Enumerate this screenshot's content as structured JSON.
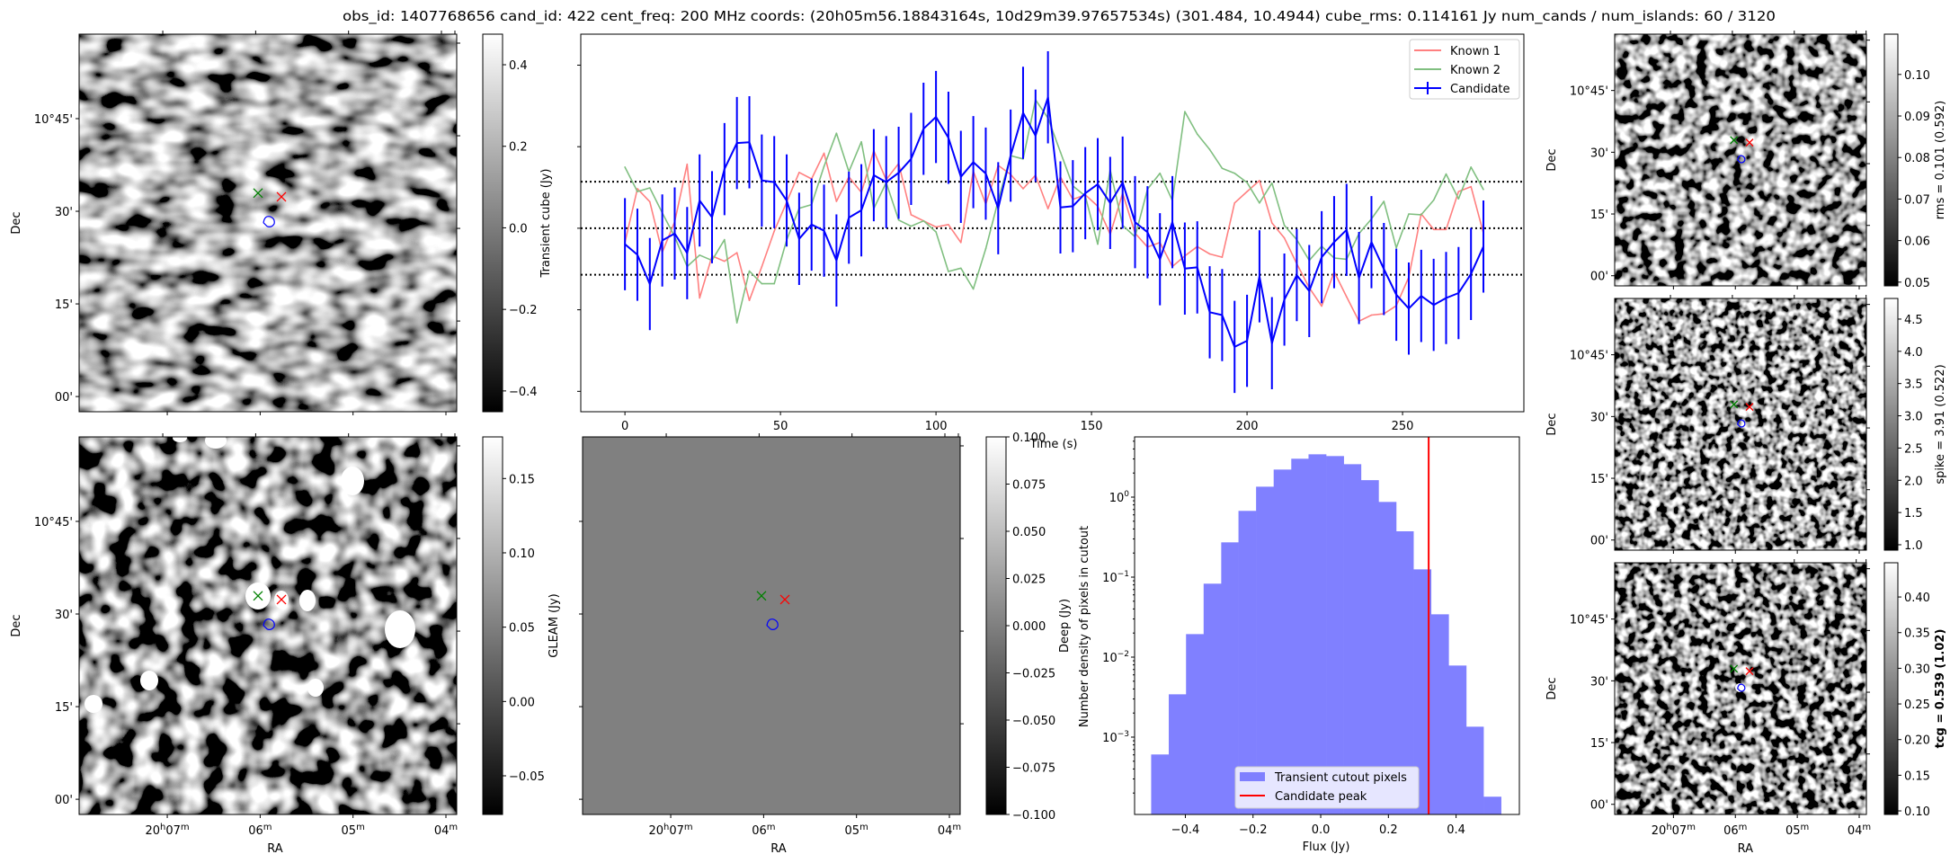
{
  "title": "obs_id: 1407768656 cand_id: 422 cent_freq: 200 MHz coords: (20h05m56.18843164s, 10d29m39.97657534s) (301.484, 10.4944) cube_rms: 0.114161 Jy num_cands / num_islands: 60 / 3120",
  "sky": {
    "ra_range_min": [
      7.949,
      3.884
    ],
    "dec_range_deg": [
      9.959,
      10.978
    ],
    "ra_label": "RA",
    "dec_label": "Dec",
    "ra_ticks": [
      {
        "value": 7,
        "label": [
          "20",
          "h",
          "07",
          "m"
        ]
      },
      {
        "value": 6,
        "label": [
          "06",
          "m"
        ]
      },
      {
        "value": 5,
        "label": [
          "05",
          "m"
        ]
      },
      {
        "value": 4,
        "label": [
          "04",
          "m"
        ]
      }
    ],
    "dec_ticks": [
      {
        "value": 10.75,
        "label": "10°45'"
      },
      {
        "value": 10.5,
        "label": "30'"
      },
      {
        "value": 10.25,
        "label": "15'"
      },
      {
        "value": 10.0,
        "label": "00'"
      }
    ],
    "markers": [
      {
        "name": "known-2",
        "symbol": "x",
        "color": "#008000",
        "ra_min": 6.023,
        "dec": 10.549
      },
      {
        "name": "known-1",
        "symbol": "x",
        "color": "#ff0000",
        "ra_min": 5.771,
        "dec": 10.539
      },
      {
        "name": "candidate",
        "symbol": "contour",
        "color": "#0000ff",
        "ra_min": 5.906,
        "dec": 10.469
      }
    ]
  },
  "images": {
    "transient": {
      "colorbar": {
        "label": "Transient cube (Jy)",
        "range": [
          -0.451,
          0.475
        ],
        "ticks": [
          {
            "value": 0.4,
            "label": "0.4"
          },
          {
            "value": 0.2,
            "label": "0.2"
          },
          {
            "value": 0.0,
            "label": "0.0"
          },
          {
            "value": -0.2,
            "label": "−0.2"
          },
          {
            "value": -0.4,
            "label": "−0.4"
          }
        ]
      }
    },
    "gleam": {
      "colorbar": {
        "label": "GLEAM (Jy)",
        "range": [
          -0.076,
          0.178
        ],
        "ticks": [
          {
            "value": 0.15,
            "label": "0.15"
          },
          {
            "value": 0.1,
            "label": "0.10"
          },
          {
            "value": 0.05,
            "label": "0.05"
          },
          {
            "value": 0.0,
            "label": "0.00"
          },
          {
            "value": -0.05,
            "label": "−0.05"
          }
        ]
      }
    },
    "deep": {
      "colorbar": {
        "label": "Deep (Jy)",
        "range": [
          -0.1,
          0.1
        ],
        "ticks": [
          {
            "value": 0.1,
            "label": "0.100"
          },
          {
            "value": 0.075,
            "label": "0.075"
          },
          {
            "value": 0.05,
            "label": "0.050"
          },
          {
            "value": 0.025,
            "label": "0.025"
          },
          {
            "value": 0.0,
            "label": "0.000"
          },
          {
            "value": -0.025,
            "label": "−0.025"
          },
          {
            "value": -0.05,
            "label": "−0.050"
          },
          {
            "value": -0.075,
            "label": "−0.075"
          },
          {
            "value": -0.1,
            "label": "−0.100"
          }
        ]
      }
    },
    "rms": {
      "colorbar": {
        "label": "rms = 0.101 (0.592)",
        "range": [
          0.0491,
          0.1097
        ],
        "ticks": [
          {
            "value": 0.1,
            "label": "0.10"
          },
          {
            "value": 0.09,
            "label": "0.09"
          },
          {
            "value": 0.08,
            "label": "0.08"
          },
          {
            "value": 0.07,
            "label": "0.07"
          },
          {
            "value": 0.06,
            "label": "0.06"
          },
          {
            "value": 0.05,
            "label": "0.05"
          }
        ]
      }
    },
    "spike": {
      "colorbar": {
        "label": "spike = 3.91 (0.522)",
        "range": [
          0.916,
          4.82
        ],
        "ticks": [
          {
            "value": 4.5,
            "label": "4.5"
          },
          {
            "value": 4.0,
            "label": "4.0"
          },
          {
            "value": 3.5,
            "label": "3.5"
          },
          {
            "value": 3.0,
            "label": "3.0"
          },
          {
            "value": 2.5,
            "label": "2.5"
          },
          {
            "value": 2.0,
            "label": "2.0"
          },
          {
            "value": 1.5,
            "label": "1.5"
          },
          {
            "value": 1.0,
            "label": "1.0"
          }
        ]
      }
    },
    "tcg": {
      "colorbar": {
        "label": "tcg = 0.539 (1.02)",
        "bold": true,
        "range": [
          0.095,
          0.448
        ],
        "ticks": [
          {
            "value": 0.4,
            "label": "0.40"
          },
          {
            "value": 0.35,
            "label": "0.35"
          },
          {
            "value": 0.3,
            "label": "0.30"
          },
          {
            "value": 0.25,
            "label": "0.25"
          },
          {
            "value": 0.2,
            "label": "0.20"
          },
          {
            "value": 0.15,
            "label": "0.15"
          },
          {
            "value": 0.1,
            "label": "0.10"
          }
        ]
      }
    }
  },
  "chart_data": [
    {
      "type": "line",
      "title": "",
      "xlabel": "Time (s)",
      "ylabel": "",
      "xlim": [
        -14.2,
        289
      ],
      "ylim": [
        -0.45,
        0.476
      ],
      "xticks": [
        {
          "value": 0,
          "label": "0"
        },
        {
          "value": 50,
          "label": "50"
        },
        {
          "value": 100,
          "label": "100"
        },
        {
          "value": 150,
          "label": "150"
        },
        {
          "value": 200,
          "label": "200"
        },
        {
          "value": 250,
          "label": "250"
        }
      ],
      "yticks": [
        0.4,
        0.2,
        0.0,
        -0.2,
        -0.4
      ],
      "hlines": [
        0.114161,
        0.0,
        -0.114161
      ],
      "legend": "top-right",
      "x": [
        0,
        4,
        8,
        12,
        16,
        20,
        24,
        28,
        32,
        36,
        40,
        44,
        48,
        52,
        56,
        60,
        64,
        68,
        72,
        76,
        80,
        84,
        88,
        92,
        96,
        100,
        104,
        108,
        112,
        116,
        120,
        124,
        128,
        132,
        136,
        140,
        144,
        148,
        152,
        156,
        160,
        164,
        168,
        172,
        176,
        180,
        184,
        188,
        192,
        196,
        200,
        204,
        208,
        212,
        216,
        220,
        224,
        228,
        232,
        236,
        240,
        244,
        248,
        252,
        256,
        260,
        264,
        268,
        272,
        276
      ],
      "series": [
        {
          "name": "Known 1",
          "color": "#ff8080",
          "values": [
            -0.035,
            0.097,
            0.065,
            -0.059,
            0.016,
            0.157,
            -0.171,
            -0.068,
            -0.081,
            -0.06,
            -0.177,
            -0.094,
            -0.007,
            0.064,
            0.137,
            0.121,
            0.184,
            0.066,
            0.126,
            0.088,
            0.19,
            0.119,
            0.159,
            0.033,
            0.018,
            0.003,
            0.009,
            -0.035,
            0.14,
            0.059,
            0.154,
            0.132,
            0.097,
            0.13,
            0.048,
            0.126,
            0.071,
            0.082,
            0.054,
            -0.015,
            0.086,
            -0.012,
            -0.046,
            -0.035,
            -0.094,
            -0.068,
            -0.045,
            -0.063,
            -0.071,
            0.062,
            0.09,
            0.117,
            0.013,
            -0.024,
            -0.087,
            -0.146,
            -0.191,
            -0.107,
            -0.168,
            -0.228,
            -0.213,
            -0.21,
            -0.19,
            -0.12,
            0.035,
            -0.003,
            -0.003,
            0.09,
            0.102,
            -0.012
          ]
        },
        {
          "name": "Known 2",
          "color": "#80bf80",
          "values": [
            0.15,
            0.09,
            0.099,
            0.038,
            -0.021,
            -0.094,
            -0.066,
            -0.079,
            -0.028,
            -0.232,
            -0.105,
            -0.136,
            -0.136,
            -0.029,
            0.049,
            0.058,
            0.152,
            0.233,
            0.139,
            0.212,
            0.048,
            0.112,
            0.02,
            0.005,
            0.018,
            -0.009,
            -0.106,
            -0.098,
            -0.149,
            -0.05,
            0.068,
            0.178,
            0.17,
            0.315,
            0.27,
            0.187,
            0.104,
            0.079,
            -0.039,
            0.143,
            0.007,
            -0.021,
            0.096,
            0.135,
            0.068,
            0.286,
            0.231,
            0.193,
            0.147,
            0.135,
            0.112,
            0.062,
            0.111,
            0.007,
            -0.028,
            -0.079,
            -0.044,
            -0.073,
            -0.076,
            -0.013,
            0.023,
            0.066,
            -0.048,
            0.035,
            0.033,
            0.069,
            0.133,
            0.072,
            0.15,
            0.095
          ]
        },
        {
          "name": "Candidate",
          "color": "#0000ff",
          "yerr": 0.113,
          "values": [
            -0.039,
            -0.065,
            -0.137,
            -0.03,
            -0.013,
            -0.061,
            0.068,
            0.027,
            0.145,
            0.209,
            0.211,
            0.117,
            0.113,
            0.068,
            -0.026,
            0.009,
            -0.006,
            -0.079,
            0.026,
            0.044,
            0.13,
            0.113,
            0.136,
            0.17,
            0.244,
            0.273,
            0.222,
            0.126,
            0.162,
            0.134,
            0.049,
            0.178,
            0.283,
            0.227,
            0.321,
            0.051,
            0.054,
            0.086,
            0.108,
            0.062,
            0.112,
            0.015,
            -0.01,
            -0.076,
            0.015,
            -0.099,
            -0.096,
            -0.206,
            -0.213,
            -0.291,
            -0.276,
            -0.118,
            -0.282,
            -0.175,
            -0.115,
            -0.154,
            -0.071,
            -0.034,
            -0.004,
            -0.122,
            -0.034,
            -0.1,
            -0.163,
            -0.197,
            -0.166,
            -0.188,
            -0.171,
            -0.159,
            -0.112,
            -0.045
          ]
        }
      ]
    },
    {
      "type": "bar",
      "title": "",
      "xlabel": "Flux (Jy)",
      "ylabel": "Number density of pixels in cutout",
      "yscale": "log",
      "xlim": [
        -0.55,
        0.587
      ],
      "ylim": [
        0.000108,
        5.66
      ],
      "xticks": [
        {
          "value": -0.4,
          "label": "−0.4"
        },
        {
          "value": -0.2,
          "label": "−0.2"
        },
        {
          "value": 0.0,
          "label": "0.0"
        },
        {
          "value": 0.2,
          "label": "0.2"
        },
        {
          "value": 0.4,
          "label": "0.4"
        }
      ],
      "yticks": [
        {
          "value": 1,
          "base": "10",
          "exp": "0"
        },
        {
          "value": 0.1,
          "base": "10",
          "exp": "−1"
        },
        {
          "value": 0.01,
          "base": "10",
          "exp": "−2"
        },
        {
          "value": 0.001,
          "base": "10",
          "exp": "−3"
        }
      ],
      "bin_edges": [
        -0.501,
        -0.449,
        -0.398,
        -0.346,
        -0.294,
        -0.243,
        -0.191,
        -0.139,
        -0.087,
        -0.036,
        0.016,
        0.068,
        0.119,
        0.171,
        0.223,
        0.274,
        0.326,
        0.378,
        0.43,
        0.481,
        0.533
      ],
      "values": [
        0.000607,
        0.00343,
        0.0194,
        0.0828,
        0.272,
        0.673,
        1.35,
        2.21,
        3.02,
        3.43,
        3.26,
        2.58,
        1.63,
        0.871,
        0.374,
        0.125,
        0.0343,
        0.00785,
        0.00135,
        0.00018
      ],
      "bar_color": "#8080ff",
      "vline": {
        "value": 0.319,
        "color": "#ff0000"
      },
      "legend_position": "lower-center",
      "legend": [
        "Transient cutout pixels",
        "Candidate peak"
      ]
    }
  ]
}
